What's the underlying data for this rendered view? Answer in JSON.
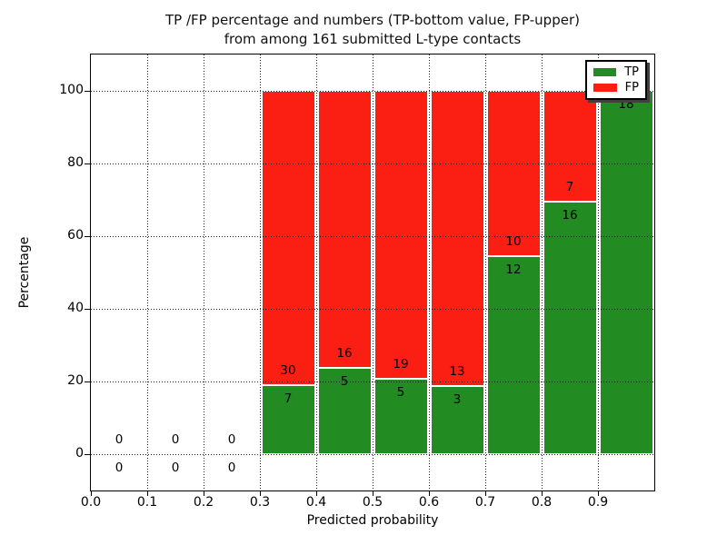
{
  "chart_data": {
    "type": "bar",
    "stacked": true,
    "normalized_to_percent": true,
    "title": "TP /FP percentage and numbers (TP-bottom value, FP-upper)",
    "subtitle": "from among 161 submitted L-type contacts",
    "xlabel": "Predicted probability",
    "ylabel": "Percentage",
    "total_contacts": 161,
    "xlim": [
      0.0,
      1.0
    ],
    "ylim": [
      -10,
      110
    ],
    "xtick_labels": [
      "0.0",
      "0.1",
      "0.2",
      "0.3",
      "0.4",
      "0.5",
      "0.6",
      "0.7",
      "0.8",
      "0.9"
    ],
    "ytick_labels": [
      "0",
      "20",
      "40",
      "60",
      "80",
      "100"
    ],
    "grid": "dotted",
    "colors": {
      "tp": "#228b22",
      "fp": "#fb1e12",
      "grid": "#000000",
      "text": "#000000"
    },
    "legend": {
      "position": "upper right",
      "entries": [
        {
          "label": "TP",
          "series": "tp"
        },
        {
          "label": "FP",
          "series": "fp"
        }
      ]
    },
    "bins": [
      {
        "x0": 0.0,
        "x1": 0.1,
        "tp": 0,
        "fp": 0
      },
      {
        "x0": 0.1,
        "x1": 0.2,
        "tp": 0,
        "fp": 0
      },
      {
        "x0": 0.2,
        "x1": 0.3,
        "tp": 0,
        "fp": 0
      },
      {
        "x0": 0.3,
        "x1": 0.4,
        "tp": 7,
        "fp": 30
      },
      {
        "x0": 0.4,
        "x1": 0.5,
        "tp": 5,
        "fp": 16
      },
      {
        "x0": 0.5,
        "x1": 0.6,
        "tp": 5,
        "fp": 19
      },
      {
        "x0": 0.6,
        "x1": 0.7,
        "tp": 3,
        "fp": 13
      },
      {
        "x0": 0.7,
        "x1": 0.8,
        "tp": 12,
        "fp": 10
      },
      {
        "x0": 0.8,
        "x1": 0.9,
        "tp": 16,
        "fp": 7
      },
      {
        "x0": 0.9,
        "x1": 1.0,
        "tp": 18,
        "fp": 0
      }
    ]
  }
}
